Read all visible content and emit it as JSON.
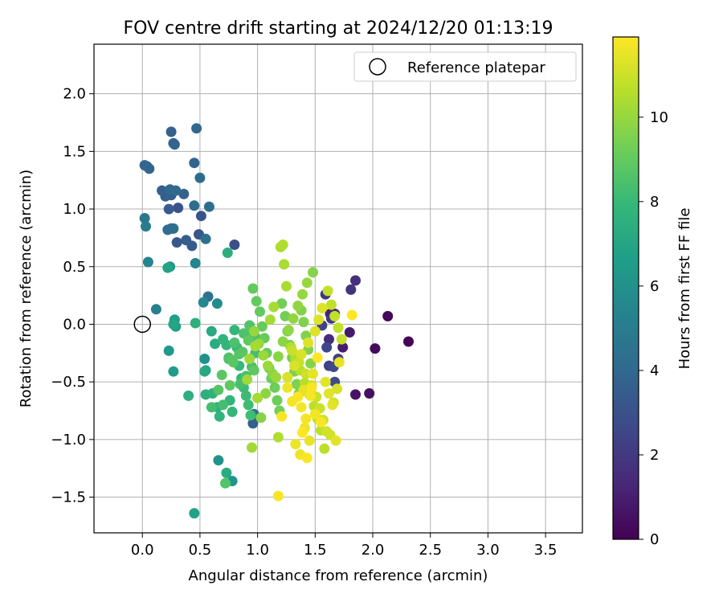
{
  "chart_data": {
    "type": "scatter",
    "title": "FOV centre drift starting at 2024/12/20 01:13:19",
    "xlabel": "Angular distance from reference (arcmin)",
    "ylabel": "Rotation from reference (arcmin)",
    "xlim": [
      -0.42,
      3.82
    ],
    "ylim": [
      -1.81,
      2.43
    ],
    "xticks": [
      "0.0",
      "0.5",
      "1.0",
      "1.5",
      "2.0",
      "2.5",
      "3.0",
      "3.5"
    ],
    "yticks": [
      "−1.5",
      "−1.0",
      "−0.5",
      "0.0",
      "0.5",
      "1.0",
      "1.5",
      "2.0"
    ],
    "grid": true,
    "legend": {
      "position": "top-right",
      "label": "Reference platepar"
    },
    "reference_point": {
      "x": 0.0,
      "y": 0.0
    },
    "colorbar": {
      "label": "Hours from first FF file",
      "min": 0,
      "max": 11.9,
      "ticks": [
        "0",
        "2",
        "4",
        "6",
        "8",
        "10"
      ],
      "colormap": [
        "#440154",
        "#482878",
        "#3e4989",
        "#31688e",
        "#26828e",
        "#1f9e89",
        "#35b779",
        "#6ece58",
        "#b5de2b",
        "#fde725"
      ]
    },
    "series": [
      {
        "x": [
          2.31,
          2.13,
          2.02,
          1.97,
          1.85,
          1.8,
          1.74,
          1.63,
          1.67,
          1.62
        ],
        "y": [
          -0.15,
          0.07,
          -0.21,
          -0.6,
          -0.61,
          -0.07,
          -0.2,
          0.09,
          0.09,
          -0.13
        ],
        "h": [
          0.1,
          0.2,
          0.3,
          0.5,
          0.6,
          0.8,
          1.0,
          1.1,
          1.3,
          1.5
        ]
      },
      {
        "x": [
          1.85,
          1.81,
          1.59,
          1.64,
          1.62,
          1.7,
          1.56,
          1.6,
          1.66,
          1.67,
          0.8,
          0.31,
          0.51,
          0.49,
          0.3,
          0.23,
          0.43,
          0.38,
          0.25,
          0.2,
          0.96
        ],
        "y": [
          0.38,
          0.3,
          0.26,
          0.05,
          -0.36,
          -0.3,
          -0.01,
          -0.2,
          -0.37,
          -0.5,
          0.69,
          1.01,
          0.94,
          0.78,
          0.71,
          1.0,
          0.68,
          0.73,
          1.12,
          1.11,
          -0.86
        ],
        "h": [
          1.6,
          1.8,
          1.9,
          2.0,
          2.2,
          2.3,
          2.4,
          2.6,
          2.7,
          2.8,
          2.9,
          3.0,
          3.1,
          3.2,
          3.3,
          3.4,
          3.4,
          3.5,
          3.5,
          3.6,
          3.6
        ]
      },
      {
        "x": [
          0.17,
          0.25,
          0.27,
          0.36,
          0.45,
          0.28,
          0.04,
          0.02,
          0.06,
          0.24,
          0.47,
          0.25,
          0.29,
          0.5,
          0.45,
          0.22,
          0.27,
          0.58,
          0.55,
          0.97,
          0.57
        ],
        "y": [
          1.16,
          1.67,
          1.57,
          1.13,
          1.4,
          1.56,
          1.37,
          1.38,
          1.35,
          1.17,
          1.7,
          0.83,
          1.16,
          1.27,
          1.03,
          0.82,
          0.83,
          1.02,
          0.74,
          -0.78,
          0.24
        ],
        "h": [
          3.6,
          3.7,
          3.7,
          3.7,
          3.8,
          3.8,
          3.9,
          3.9,
          3.9,
          4.0,
          4.0,
          4.0,
          4.1,
          4.1,
          4.2,
          4.2,
          4.3,
          4.3,
          4.4,
          4.4,
          4.5
        ]
      },
      {
        "x": [
          0.02,
          0.03,
          0.12,
          0.05,
          0.46,
          0.53,
          0.65,
          0.54,
          0.66,
          0.78
        ],
        "y": [
          0.92,
          0.85,
          0.13,
          0.54,
          0.53,
          0.19,
          0.18,
          -0.3,
          -1.18,
          -1.36
        ],
        "h": [
          4.7,
          5.0,
          5.2,
          5.4,
          5.5,
          5.6,
          5.8,
          6.0,
          6.1,
          6.2
        ]
      },
      {
        "x": [
          0.24,
          0.23,
          0.27,
          0.28,
          0.29,
          0.45,
          0.22,
          0.27,
          0.55,
          0.54,
          0.6,
          0.63,
          0.73,
          0.74,
          0.46
        ],
        "y": [
          0.5,
          -0.23,
          -0.41,
          0.04,
          -0.02,
          -1.64,
          0.49,
          0.0,
          -0.4,
          -0.41,
          -0.06,
          -0.17,
          -1.29,
          0.62,
          0.01
        ],
        "h": [
          6.3,
          6.4,
          6.5,
          6.6,
          6.7,
          6.8,
          6.9,
          7.0,
          7.1,
          7.2,
          7.2,
          7.3,
          7.3,
          7.4,
          7.5
        ]
      },
      {
        "x": [
          0.4,
          0.55,
          0.61,
          0.65,
          0.67,
          0.7,
          0.73,
          0.75,
          0.76,
          0.78,
          0.8,
          0.82,
          0.84,
          0.86,
          0.88,
          0.9,
          0.92,
          0.94,
          0.96,
          0.98,
          0.6,
          0.7,
          0.85,
          0.9,
          0.95,
          0.75,
          0.8,
          0.88,
          0.93,
          0.98,
          0.72,
          0.77,
          0.84,
          0.66,
          0.69,
          0.79,
          0.87,
          0.92,
          0.97,
          0.76
        ],
        "y": [
          -0.62,
          -0.61,
          -0.6,
          -0.72,
          -0.8,
          -0.13,
          -0.18,
          -0.3,
          -0.66,
          -0.76,
          -0.05,
          -0.2,
          -0.36,
          -0.47,
          -0.55,
          -0.62,
          -0.7,
          -0.79,
          -0.08,
          -0.25,
          -0.72,
          -0.7,
          -0.52,
          -0.45,
          -0.37,
          -0.29,
          -0.16,
          -0.08,
          -0.01,
          -0.11,
          -1.38,
          -0.31,
          -0.26,
          -0.57,
          -0.44,
          -0.33,
          -0.24,
          -0.14,
          -0.4,
          -0.53
        ],
        "h": [
          7.5,
          7.5,
          7.6,
          7.6,
          7.7,
          7.7,
          7.8,
          7.8,
          7.8,
          7.9,
          7.9,
          8.0,
          8.0,
          8.0,
          8.1,
          8.1,
          8.2,
          8.2,
          8.2,
          8.3,
          8.3,
          8.3,
          8.4,
          8.4,
          8.4,
          8.5,
          8.5,
          8.5,
          8.6,
          8.6,
          8.6,
          8.7,
          8.7,
          8.7,
          8.8,
          8.8,
          8.8,
          8.9,
          8.9,
          8.9
        ]
      },
      {
        "x": [
          0.96,
          0.99,
          1.02,
          1.04,
          1.06,
          1.08,
          1.1,
          1.12,
          1.15,
          1.17,
          1.19,
          1.21,
          1.24,
          1.26,
          1.28,
          1.3,
          1.32,
          1.34,
          1.36,
          1.38,
          1.4,
          1.42,
          1.44,
          1.46,
          1.48,
          1.03,
          1.07,
          1.13,
          1.18,
          1.22,
          1.27,
          1.31,
          1.35,
          1.39,
          1.43,
          0.97,
          1.01,
          1.05,
          1.09,
          1.16,
          0.95,
          0.91,
          0.93,
          0.98,
          1.0,
          1.11,
          1.14,
          1.2,
          1.23,
          1.25
        ],
        "y": [
          0.31,
          0.2,
          0.11,
          -0.02,
          -0.12,
          -0.25,
          -0.38,
          -0.47,
          -0.55,
          -0.66,
          -0.75,
          0.18,
          0.07,
          -0.06,
          -0.18,
          -0.29,
          -0.41,
          -0.52,
          -0.6,
          0.12,
          0.02,
          -0.1,
          -0.22,
          -0.34,
          0.45,
          -0.81,
          -0.6,
          -0.43,
          -0.28,
          -0.15,
          -0.05,
          0.05,
          0.16,
          0.26,
          0.36,
          -0.06,
          -0.17,
          -0.27,
          -0.36,
          -0.46,
          -1.07,
          -0.48,
          -0.3,
          -0.19,
          -0.64,
          0.04,
          0.15,
          0.67,
          0.52,
          0.33
        ],
        "h": [
          9.0,
          9.0,
          9.0,
          9.1,
          9.1,
          9.1,
          9.1,
          9.2,
          9.2,
          9.2,
          9.3,
          9.3,
          9.3,
          9.4,
          9.4,
          9.4,
          9.5,
          9.5,
          9.5,
          9.6,
          9.6,
          9.6,
          9.6,
          9.7,
          9.7,
          9.7,
          9.8,
          9.8,
          9.8,
          9.8,
          9.9,
          9.9,
          9.9,
          10.0,
          10.0,
          10.0,
          10.1,
          10.1,
          10.1,
          10.1,
          10.2,
          10.2,
          10.2,
          10.3,
          10.3,
          10.3,
          10.3,
          10.4,
          10.4,
          10.4
        ]
      },
      {
        "x": [
          1.22,
          1.18,
          1.29,
          1.33,
          1.37,
          1.41,
          1.45,
          1.49,
          1.52,
          1.55,
          1.58,
          1.61,
          1.64,
          1.67,
          1.7,
          1.73,
          1.3,
          1.36,
          1.42,
          1.47,
          1.51,
          1.54,
          1.57,
          1.6,
          1.63,
          1.66,
          1.69,
          1.26,
          1.32,
          1.38,
          1.44,
          1.5,
          1.53,
          1.56,
          1.59,
          1.62,
          1.65,
          1.68,
          1.71,
          1.48
        ],
        "y": [
          0.69,
          -0.98,
          -0.2,
          -0.3,
          -0.4,
          -0.51,
          -0.61,
          -0.71,
          -0.82,
          -0.92,
          -1.08,
          0.29,
          0.17,
          0.07,
          -0.03,
          -0.13,
          -0.23,
          -0.33,
          -0.43,
          -0.53,
          -0.63,
          -0.73,
          -0.83,
          -0.93,
          -0.96,
          -0.68,
          -0.56,
          -0.46,
          -0.36,
          -0.26,
          -0.16,
          -0.06,
          0.04,
          0.14,
          -0.5,
          -0.6,
          -0.7,
          -1.01,
          -0.33,
          -0.43
        ],
        "h": [
          10.5,
          10.5,
          10.5,
          10.5,
          10.6,
          10.6,
          10.6,
          10.7,
          10.7,
          10.7,
          10.7,
          10.8,
          10.8,
          10.8,
          10.8,
          10.9,
          10.9,
          10.9,
          11.0,
          11.0,
          11.0,
          11.0,
          11.1,
          11.1,
          11.1,
          11.1,
          11.2,
          11.2,
          11.2,
          11.2,
          11.3,
          11.3,
          11.3,
          11.3,
          11.4,
          11.4,
          11.4,
          11.4,
          11.5,
          11.5
        ]
      },
      {
        "x": [
          1.4,
          1.45,
          1.33,
          1.37,
          1.41,
          1.26,
          1.3,
          1.46,
          1.5,
          1.42,
          1.38,
          1.18,
          1.21,
          1.35,
          1.43,
          1.47,
          1.55,
          1.82,
          1.52,
          1.39
        ],
        "y": [
          -0.57,
          -1.01,
          -1.04,
          -1.13,
          -0.9,
          -0.55,
          -0.67,
          -0.62,
          -0.78,
          -0.82,
          -0.72,
          -1.49,
          -0.8,
          -0.63,
          -1.16,
          -0.55,
          -0.85,
          0.08,
          -0.29,
          -0.94
        ],
        "h": [
          11.5,
          11.5,
          11.6,
          11.6,
          11.6,
          11.6,
          11.7,
          11.7,
          11.7,
          11.7,
          11.7,
          11.8,
          11.8,
          11.8,
          11.8,
          11.8,
          11.8,
          11.9,
          11.9,
          11.9
        ]
      }
    ]
  }
}
